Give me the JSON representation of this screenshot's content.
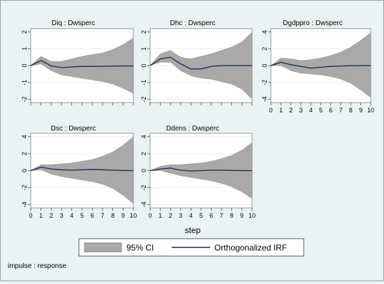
{
  "chart_data": {
    "type": "line",
    "x": [
      0,
      1,
      2,
      3,
      4,
      5,
      6,
      7,
      8,
      9,
      10
    ],
    "xlabel": "step",
    "footnote": "impulse : response",
    "legend": {
      "placement": "bottom",
      "entries": [
        {
          "label": "95% CI",
          "color": "#a9a9a9"
        },
        {
          "label": "Orthogonalized IRF",
          "color": "#1a2456"
        }
      ]
    },
    "panels": [
      {
        "title": "Diq : Dwsperc",
        "ylim": [
          -2.2,
          2.2
        ],
        "yticks": [
          -2,
          -1,
          0,
          1,
          2
        ],
        "irf": [
          0,
          0.3,
          -0.02,
          -0.12,
          -0.08,
          -0.05,
          -0.05,
          -0.04,
          -0.03,
          -0.02,
          -0.02
        ],
        "lower": [
          0,
          0.1,
          -0.3,
          -0.55,
          -0.65,
          -0.75,
          -0.85,
          -0.95,
          -1.1,
          -1.35,
          -1.65
        ],
        "upper": [
          0,
          0.55,
          0.25,
          0.25,
          0.4,
          0.55,
          0.65,
          0.75,
          0.95,
          1.25,
          1.65
        ]
      },
      {
        "title": "Dhc : Dwsperc",
        "ylim": [
          -2.2,
          2.2
        ],
        "yticks": [
          -2,
          -1,
          0,
          1,
          2
        ],
        "irf": [
          0,
          0.4,
          0.5,
          0.1,
          -0.2,
          -0.2,
          -0.05,
          0,
          0,
          0,
          0
        ],
        "lower": [
          0,
          0.2,
          0.2,
          -0.3,
          -0.6,
          -0.75,
          -0.8,
          -0.95,
          -1.1,
          -1.4,
          -2.0
        ],
        "upper": [
          0,
          0.7,
          0.9,
          0.5,
          0.4,
          0.55,
          0.7,
          0.9,
          1.1,
          1.4,
          2.0
        ]
      },
      {
        "title": "Dgdppro : Dwsperc",
        "ylim": [
          -4.4,
          4.4
        ],
        "yticks": [
          -4,
          -2,
          0,
          2,
          4
        ],
        "irf": [
          0,
          0.4,
          0.1,
          -0.1,
          -0.3,
          -0.2,
          -0.1,
          -0.05,
          -0.02,
          0,
          0
        ],
        "lower": [
          0,
          0,
          -0.6,
          -0.9,
          -1.0,
          -1.1,
          -1.3,
          -1.6,
          -2.1,
          -2.9,
          -3.8
        ],
        "upper": [
          0,
          0.9,
          0.8,
          0.6,
          0.7,
          0.9,
          1.2,
          1.6,
          2.2,
          3.0,
          3.9
        ]
      },
      {
        "title": "Dsc : Dwsperc",
        "ylim": [
          -4.4,
          4.4
        ],
        "yticks": [
          -4,
          -2,
          0,
          2,
          4
        ],
        "irf": [
          0,
          0.4,
          0.2,
          0.1,
          0.05,
          0.1,
          0.15,
          0.1,
          0.05,
          0.02,
          0
        ],
        "lower": [
          0,
          0.1,
          -0.4,
          -0.7,
          -0.9,
          -1.1,
          -1.3,
          -1.6,
          -2.1,
          -2.9,
          -3.9
        ],
        "upper": [
          0,
          0.7,
          0.7,
          0.8,
          0.9,
          1.1,
          1.3,
          1.7,
          2.2,
          3.0,
          4.0
        ]
      },
      {
        "title": "Ddens : Dwsperc",
        "ylim": [
          -4.4,
          4.4
        ],
        "yticks": [
          -4,
          -2,
          0,
          2,
          4
        ],
        "irf": [
          0,
          0.2,
          0.3,
          0.05,
          -0.05,
          0,
          0.05,
          0.05,
          0.02,
          0,
          0
        ],
        "lower": [
          0,
          0,
          -0.3,
          -0.6,
          -0.8,
          -1.0,
          -1.2,
          -1.5,
          -1.9,
          -2.5,
          -3.3
        ],
        "upper": [
          0,
          0.5,
          0.7,
          0.7,
          0.8,
          0.9,
          1.1,
          1.4,
          1.8,
          2.4,
          3.3
        ]
      }
    ]
  }
}
